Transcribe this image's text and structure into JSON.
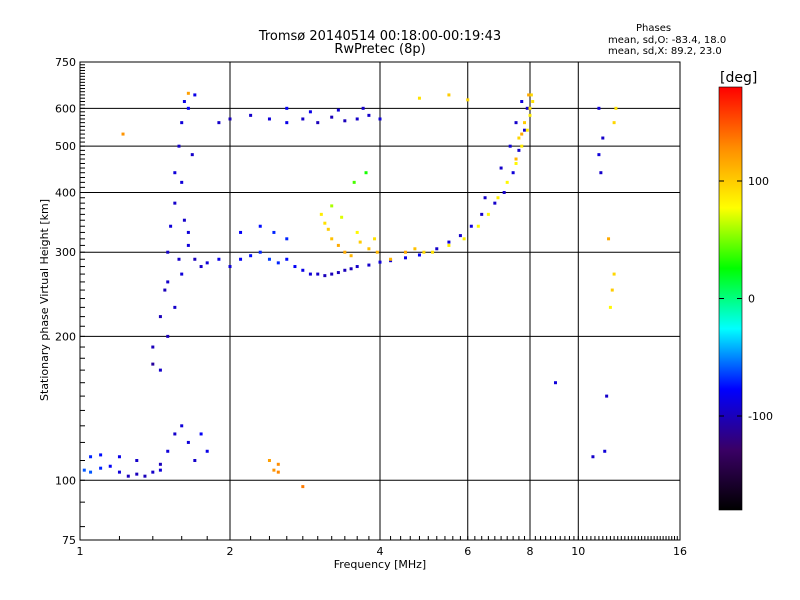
{
  "chart_data": {
    "type": "scatter",
    "title": "Tromsø 20140514 00:18:00-00:19:43",
    "subtitle": "RwPretec (8p)",
    "xlabel": "Frequency [MHz]",
    "ylabel": "Stationary phase Virtual Height [km]",
    "x_scale": "log2",
    "y_scale": "log",
    "xlim": [
      1,
      16
    ],
    "ylim": [
      75,
      750
    ],
    "x_ticks": [
      1,
      2,
      4,
      6,
      8,
      10,
      16
    ],
    "y_ticks": [
      75,
      100,
      200,
      300,
      400,
      500,
      600,
      750
    ],
    "grid": true,
    "stats": {
      "heading": "Phases",
      "line1": "mean, sd,O: -83.4, 18.0",
      "line2": "mean, sd,X:  89.2, 23.0"
    },
    "colorbar": {
      "label": "[deg]",
      "range": [
        -180,
        180
      ],
      "ticks": [
        100,
        0,
        -100
      ],
      "colors": [
        "#ff0000",
        "#ff8c00",
        "#ffff00",
        "#00ff00",
        "#00ffff",
        "#0000ff",
        "#3a0066",
        "#000000"
      ]
    },
    "series": [
      {
        "points": [
          [
            1.02,
            105,
            -60
          ],
          [
            1.05,
            104,
            -60
          ],
          [
            1.1,
            106,
            -70
          ],
          [
            1.15,
            107,
            -80
          ],
          [
            1.2,
            104,
            -90
          ],
          [
            1.25,
            102,
            -100
          ],
          [
            1.3,
            103,
            -100
          ],
          [
            1.35,
            102,
            -100
          ],
          [
            1.4,
            104,
            -95
          ],
          [
            1.45,
            105,
            -90
          ],
          [
            1.05,
            112,
            -70
          ],
          [
            1.1,
            113,
            -75
          ],
          [
            1.2,
            112,
            -85
          ],
          [
            1.3,
            110,
            -95
          ],
          [
            1.45,
            108,
            -100
          ],
          [
            1.5,
            115,
            -90
          ],
          [
            1.55,
            125,
            -95
          ],
          [
            1.6,
            130,
            -90
          ],
          [
            1.65,
            120,
            -90
          ],
          [
            1.7,
            110,
            -95
          ],
          [
            1.75,
            125,
            -80
          ],
          [
            1.8,
            115,
            -85
          ],
          [
            1.4,
            190,
            -100
          ],
          [
            1.45,
            220,
            -100
          ],
          [
            1.5,
            260,
            -95
          ],
          [
            1.5,
            300,
            -95
          ],
          [
            1.52,
            340,
            -90
          ],
          [
            1.55,
            380,
            -95
          ],
          [
            1.55,
            440,
            -90
          ],
          [
            1.58,
            500,
            -95
          ],
          [
            1.6,
            560,
            -90
          ],
          [
            1.62,
            620,
            -85
          ],
          [
            1.45,
            170,
            -95
          ],
          [
            1.5,
            200,
            -100
          ],
          [
            1.55,
            230,
            -95
          ],
          [
            1.6,
            270,
            -90
          ],
          [
            1.65,
            310,
            -90
          ],
          [
            1.62,
            350,
            -95
          ],
          [
            1.6,
            420,
            -90
          ],
          [
            1.68,
            480,
            -95
          ],
          [
            1.65,
            600,
            -80
          ],
          [
            1.7,
            640,
            -85
          ],
          [
            1.4,
            175,
            -110
          ],
          [
            1.48,
            250,
            -100
          ],
          [
            1.58,
            290,
            -95
          ],
          [
            1.65,
            330,
            -90
          ],
          [
            1.7,
            290,
            -100
          ],
          [
            1.75,
            280,
            -95
          ],
          [
            1.8,
            285,
            -90
          ],
          [
            1.9,
            290,
            -85
          ],
          [
            2.0,
            280,
            -90
          ],
          [
            2.1,
            290,
            -80
          ],
          [
            2.2,
            295,
            -75
          ],
          [
            2.3,
            300,
            -70
          ],
          [
            2.4,
            290,
            -65
          ],
          [
            2.5,
            285,
            -70
          ],
          [
            2.6,
            290,
            -75
          ],
          [
            2.7,
            280,
            -80
          ],
          [
            2.8,
            275,
            -85
          ],
          [
            2.9,
            270,
            -90
          ],
          [
            3.0,
            270,
            -95
          ],
          [
            3.1,
            268,
            -100
          ],
          [
            3.2,
            270,
            -100
          ],
          [
            3.3,
            272,
            -100
          ],
          [
            3.4,
            275,
            -100
          ],
          [
            3.5,
            277,
            -100
          ],
          [
            3.6,
            280,
            -95
          ],
          [
            3.8,
            282,
            -95
          ],
          [
            4.0,
            286,
            -90
          ],
          [
            4.2,
            288,
            -90
          ],
          [
            4.5,
            292,
            -85
          ],
          [
            4.8,
            296,
            -80
          ],
          [
            2.1,
            330,
            -80
          ],
          [
            2.3,
            340,
            -75
          ],
          [
            2.45,
            330,
            -70
          ],
          [
            2.6,
            320,
            -70
          ],
          [
            1.9,
            560,
            -95
          ],
          [
            2.0,
            570,
            -100
          ],
          [
            2.2,
            580,
            -95
          ],
          [
            2.4,
            570,
            -90
          ],
          [
            2.6,
            560,
            -85
          ],
          [
            2.8,
            570,
            -95
          ],
          [
            3.0,
            560,
            -100
          ],
          [
            3.2,
            575,
            -100
          ],
          [
            3.4,
            565,
            -100
          ],
          [
            3.6,
            570,
            -95
          ],
          [
            3.8,
            580,
            -95
          ],
          [
            4.0,
            570,
            -90
          ],
          [
            2.6,
            600,
            -80
          ],
          [
            2.9,
            590,
            -85
          ],
          [
            3.3,
            595,
            -90
          ],
          [
            3.7,
            600,
            -95
          ],
          [
            5.2,
            305,
            -95
          ],
          [
            5.5,
            315,
            -90
          ],
          [
            5.8,
            325,
            -95
          ],
          [
            6.1,
            340,
            -90
          ],
          [
            6.4,
            360,
            -95
          ],
          [
            6.8,
            380,
            -95
          ],
          [
            7.1,
            400,
            -95
          ],
          [
            7.4,
            440,
            -90
          ],
          [
            7.6,
            490,
            -95
          ],
          [
            7.8,
            540,
            -90
          ],
          [
            7.9,
            600,
            -95
          ],
          [
            6.5,
            390,
            -95
          ],
          [
            7.0,
            450,
            -95
          ],
          [
            7.3,
            500,
            -90
          ],
          [
            7.5,
            560,
            -95
          ],
          [
            7.7,
            620,
            -90
          ],
          [
            11.0,
            480,
            -90
          ],
          [
            11.2,
            520,
            -95
          ],
          [
            11.1,
            440,
            -95
          ],
          [
            11.0,
            600,
            -90
          ],
          [
            11.4,
            150,
            -95
          ],
          [
            11.3,
            115,
            -90
          ],
          [
            10.7,
            112,
            -95
          ],
          [
            9.0,
            160,
            -90
          ]
        ]
      },
      {
        "points": [
          [
            3.05,
            360,
            85
          ],
          [
            3.1,
            345,
            90
          ],
          [
            3.15,
            335,
            100
          ],
          [
            3.2,
            320,
            105
          ],
          [
            3.3,
            310,
            115
          ],
          [
            3.4,
            300,
            115
          ],
          [
            3.5,
            295,
            110
          ],
          [
            3.65,
            315,
            100
          ],
          [
            3.8,
            305,
            105
          ],
          [
            3.95,
            300,
            110
          ],
          [
            3.2,
            375,
            60
          ],
          [
            3.35,
            355,
            70
          ],
          [
            3.6,
            330,
            80
          ],
          [
            3.9,
            320,
            90
          ],
          [
            4.2,
            290,
            110
          ],
          [
            4.5,
            300,
            115
          ],
          [
            4.7,
            305,
            105
          ],
          [
            4.9,
            300,
            95
          ],
          [
            5.1,
            300,
            90
          ],
          [
            5.5,
            310,
            85
          ],
          [
            5.9,
            320,
            85
          ],
          [
            6.3,
            340,
            80
          ],
          [
            6.6,
            360,
            80
          ],
          [
            6.9,
            390,
            85
          ],
          [
            7.2,
            420,
            80
          ],
          [
            7.5,
            460,
            80
          ],
          [
            7.7,
            500,
            85
          ],
          [
            7.9,
            540,
            85
          ],
          [
            8.0,
            580,
            85
          ],
          [
            8.1,
            620,
            90
          ],
          [
            7.6,
            520,
            95
          ],
          [
            7.8,
            560,
            100
          ],
          [
            8.0,
            600,
            90
          ],
          [
            8.05,
            640,
            95
          ],
          [
            7.5,
            470,
            110
          ],
          [
            7.7,
            530,
            115
          ],
          [
            7.95,
            640,
            115
          ],
          [
            3.55,
            420,
            40
          ],
          [
            3.75,
            440,
            30
          ],
          [
            4.8,
            630,
            90
          ],
          [
            5.5,
            640,
            100
          ],
          [
            6.0,
            625,
            95
          ],
          [
            11.8,
            560,
            95
          ],
          [
            11.9,
            600,
            90
          ],
          [
            11.7,
            250,
            100
          ],
          [
            11.8,
            270,
            95
          ],
          [
            11.6,
            230,
            80
          ],
          [
            11.5,
            320,
            115
          ],
          [
            2.45,
            105,
            125
          ],
          [
            2.5,
            108,
            128
          ],
          [
            2.4,
            110,
            120
          ],
          [
            2.5,
            104,
            130
          ],
          [
            2.8,
            97,
            135
          ],
          [
            1.65,
            645,
            120
          ],
          [
            1.22,
            530,
            125
          ]
        ]
      }
    ]
  }
}
